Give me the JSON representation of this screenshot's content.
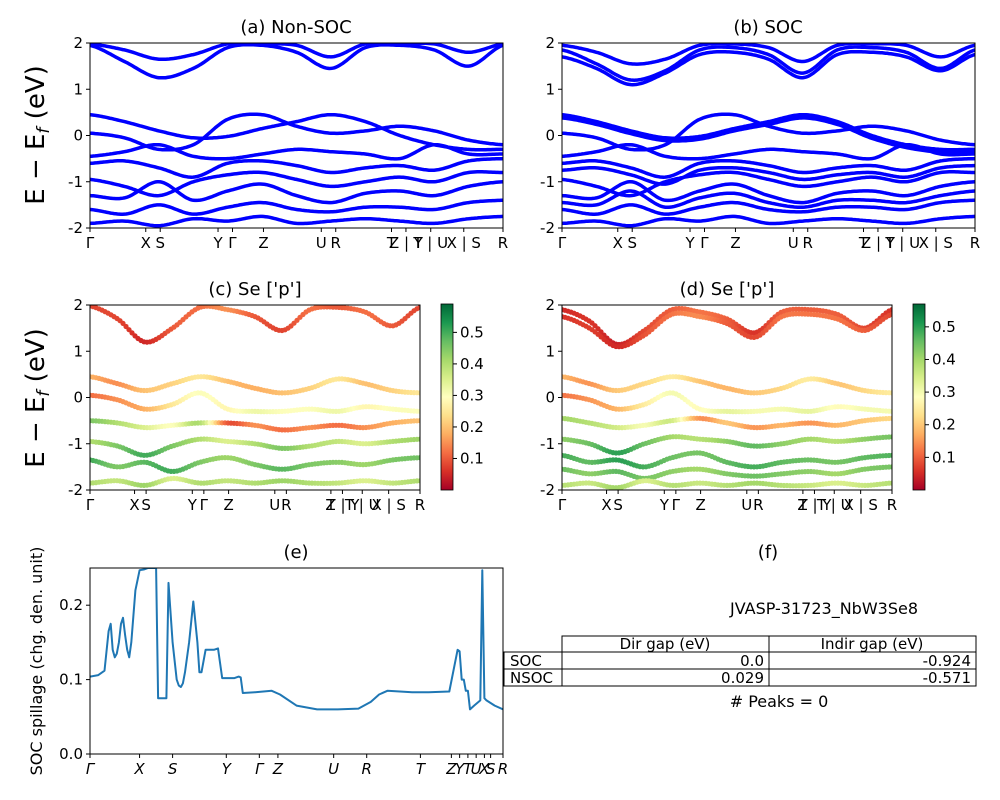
{
  "chart_data": [
    {
      "panel": "a",
      "type": "line",
      "title": "(a) Non-SOC",
      "ylabel": "E - E_f (eV)",
      "ylim": [
        -2,
        2
      ],
      "yticks": [
        "-2",
        "-1",
        "0",
        "1",
        "2"
      ],
      "xticks": [
        "Γ",
        "X",
        "S",
        "Y",
        "Γ",
        "Z",
        "U",
        "R",
        "T",
        "Z | Y",
        "T | U",
        "X | S",
        "R"
      ],
      "color": "#0000ff",
      "bands": [
        [
          0.45,
          0.3,
          0.1,
          -0.05,
          -0.02,
          0.15,
          0.3,
          0.45,
          0.3,
          0.0,
          -0.2,
          -0.3,
          -0.3
        ],
        [
          0.05,
          -0.05,
          -0.3,
          -0.2,
          0.35,
          0.45,
          0.2,
          0.05,
          0.1,
          0.2,
          0.1,
          -0.1,
          -0.2
        ],
        [
          -0.45,
          -0.35,
          -0.2,
          -0.45,
          -0.5,
          -0.4,
          -0.3,
          -0.35,
          -0.4,
          -0.5,
          -0.2,
          -0.4,
          -0.4
        ],
        [
          -0.6,
          -0.55,
          -0.7,
          -0.9,
          -0.6,
          -0.55,
          -0.65,
          -0.8,
          -0.7,
          -0.65,
          -0.75,
          -0.55,
          -0.5
        ],
        [
          -0.95,
          -1.1,
          -1.3,
          -1.0,
          -0.85,
          -0.8,
          -0.95,
          -1.1,
          -1.0,
          -0.9,
          -1.0,
          -0.8,
          -0.8
        ],
        [
          -1.3,
          -1.35,
          -1.0,
          -1.4,
          -1.2,
          -1.05,
          -1.3,
          -1.45,
          -1.25,
          -1.2,
          -1.3,
          -1.1,
          -1.0
        ],
        [
          -1.6,
          -1.7,
          -1.5,
          -1.7,
          -1.55,
          -1.45,
          -1.6,
          -1.65,
          -1.55,
          -1.55,
          -1.6,
          -1.45,
          -1.4
        ],
        [
          -1.9,
          -1.85,
          -1.95,
          -1.8,
          -1.85,
          -1.75,
          -1.9,
          -1.85,
          -1.8,
          -1.85,
          -1.9,
          -1.8,
          -1.75
        ],
        [
          1.95,
          1.6,
          1.25,
          1.45,
          1.9,
          1.95,
          1.8,
          1.45,
          1.9,
          1.95,
          1.85,
          1.5,
          1.95
        ],
        [
          1.98,
          1.85,
          1.65,
          1.75,
          1.98,
          1.98,
          1.95,
          1.7,
          1.98,
          1.98,
          1.98,
          1.8,
          1.98
        ]
      ]
    },
    {
      "panel": "b",
      "type": "line",
      "title": "(b) SOC",
      "ylim": [
        -2,
        2
      ],
      "yticks": [
        "-2",
        "-1",
        "0",
        "1",
        "2"
      ],
      "xticks": [
        "Γ",
        "X",
        "S",
        "Y",
        "Γ",
        "Z",
        "U",
        "R",
        "T",
        "Z | Y",
        "T | U",
        "X | S",
        "R"
      ],
      "color": "#0000ff",
      "bands": [
        [
          0.45,
          0.3,
          0.1,
          -0.05,
          -0.02,
          0.15,
          0.3,
          0.45,
          0.3,
          0.0,
          -0.2,
          -0.3,
          -0.3
        ],
        [
          0.38,
          0.24,
          0.04,
          -0.11,
          -0.08,
          0.1,
          0.24,
          0.38,
          0.24,
          -0.06,
          -0.26,
          -0.36,
          -0.36
        ],
        [
          0.05,
          -0.05,
          -0.3,
          -0.2,
          0.35,
          0.45,
          0.2,
          0.05,
          0.1,
          0.2,
          0.1,
          -0.1,
          -0.2
        ],
        [
          -0.45,
          -0.35,
          -0.2,
          -0.45,
          -0.5,
          -0.4,
          -0.3,
          -0.35,
          -0.4,
          -0.5,
          -0.2,
          -0.4,
          -0.4
        ],
        [
          -0.6,
          -0.55,
          -0.7,
          -0.9,
          -0.6,
          -0.55,
          -0.65,
          -0.8,
          -0.7,
          -0.65,
          -0.75,
          -0.55,
          -0.5
        ],
        [
          -0.75,
          -0.7,
          -0.85,
          -1.05,
          -0.75,
          -0.7,
          -0.8,
          -0.95,
          -0.85,
          -0.8,
          -0.9,
          -0.7,
          -0.65
        ],
        [
          -0.95,
          -1.1,
          -1.3,
          -1.0,
          -0.85,
          -0.8,
          -0.95,
          -1.1,
          -1.0,
          -0.9,
          -1.0,
          -0.8,
          -0.8
        ],
        [
          -1.3,
          -1.35,
          -1.0,
          -1.4,
          -1.2,
          -1.05,
          -1.3,
          -1.45,
          -1.25,
          -1.2,
          -1.3,
          -1.1,
          -1.0
        ],
        [
          -1.45,
          -1.5,
          -1.2,
          -1.55,
          -1.35,
          -1.25,
          -1.45,
          -1.55,
          -1.4,
          -1.4,
          -1.45,
          -1.3,
          -1.2
        ],
        [
          -1.6,
          -1.7,
          -1.5,
          -1.7,
          -1.55,
          -1.45,
          -1.6,
          -1.65,
          -1.55,
          -1.55,
          -1.6,
          -1.45,
          -1.4
        ],
        [
          -1.9,
          -1.85,
          -1.95,
          -1.8,
          -1.85,
          -1.75,
          -1.9,
          -1.85,
          -1.8,
          -1.85,
          -1.9,
          -1.8,
          -1.75
        ],
        [
          1.85,
          1.55,
          1.2,
          1.4,
          1.85,
          1.9,
          1.75,
          1.35,
          1.85,
          1.9,
          1.8,
          1.45,
          1.85
        ],
        [
          1.7,
          1.45,
          1.1,
          1.35,
          1.75,
          1.8,
          1.65,
          1.25,
          1.75,
          1.8,
          1.7,
          1.4,
          1.75
        ],
        [
          1.95,
          1.8,
          1.55,
          1.65,
          1.95,
          1.98,
          1.9,
          1.6,
          1.95,
          1.98,
          1.95,
          1.7,
          1.95
        ]
      ]
    },
    {
      "panel": "c",
      "type": "scatter",
      "title": "(c)  Se ['p']",
      "ylabel": "E - E_f (eV)",
      "ylim": [
        -2,
        2
      ],
      "yticks": [
        "-2",
        "-1",
        "0",
        "1",
        "2"
      ],
      "xticks": [
        "Γ",
        "X",
        "S",
        "Y",
        "Γ",
        "Z",
        "U",
        "R",
        "T",
        "Z | Y",
        "T | U",
        "X | S",
        "R"
      ],
      "colorbar": {
        "min": 0.0,
        "max": 0.59,
        "ticks": [
          "0.1",
          "0.2",
          "0.3",
          "0.4",
          "0.5"
        ],
        "colormap": "RdYlGn"
      },
      "bands": [
        {
          "e": [
            1.98,
            1.7,
            1.2,
            1.5,
            1.95,
            1.9,
            1.75,
            1.45,
            1.9,
            1.95,
            1.85,
            1.55,
            1.95
          ],
          "w": [
            0.08,
            0.08,
            0.05,
            0.1,
            0.12,
            0.15,
            0.1,
            0.08,
            0.12,
            0.1,
            0.12,
            0.1,
            0.08
          ]
        },
        {
          "e": [
            0.45,
            0.3,
            0.15,
            0.3,
            0.45,
            0.35,
            0.2,
            0.1,
            0.2,
            0.4,
            0.3,
            0.15,
            0.1
          ],
          "w": [
            0.18,
            0.15,
            0.2,
            0.22,
            0.25,
            0.2,
            0.18,
            0.2,
            0.22,
            0.25,
            0.2,
            0.22,
            0.25
          ]
        },
        {
          "e": [
            0.05,
            -0.05,
            -0.25,
            -0.15,
            0.1,
            -0.25,
            -0.3,
            -0.3,
            -0.25,
            -0.3,
            -0.2,
            -0.25,
            -0.3
          ],
          "w": [
            0.12,
            0.15,
            0.18,
            0.25,
            0.3,
            0.28,
            0.32,
            0.3,
            0.3,
            0.32,
            0.28,
            0.3,
            0.3
          ]
        },
        {
          "e": [
            -0.5,
            -0.55,
            -0.65,
            -0.6,
            -0.55,
            -0.55,
            -0.6,
            -0.7,
            -0.65,
            -0.6,
            -0.65,
            -0.55,
            -0.5
          ],
          "w": [
            0.45,
            0.4,
            0.35,
            0.3,
            0.4,
            0.1,
            0.15,
            0.12,
            0.15,
            0.12,
            0.15,
            0.18,
            0.2
          ]
        },
        {
          "e": [
            -0.95,
            -1.05,
            -1.25,
            -1.05,
            -0.9,
            -0.95,
            -1.0,
            -1.1,
            -1.05,
            -0.95,
            -1.0,
            -0.95,
            -0.9
          ],
          "w": [
            0.4,
            0.45,
            0.5,
            0.45,
            0.4,
            0.35,
            0.4,
            0.45,
            0.4,
            0.38,
            0.35,
            0.4,
            0.42
          ]
        },
        {
          "e": [
            -1.35,
            -1.5,
            -1.4,
            -1.6,
            -1.4,
            -1.3,
            -1.45,
            -1.55,
            -1.45,
            -1.4,
            -1.45,
            -1.35,
            -1.3
          ],
          "w": [
            0.5,
            0.45,
            0.48,
            0.5,
            0.45,
            0.42,
            0.45,
            0.48,
            0.45,
            0.44,
            0.42,
            0.45,
            0.46
          ]
        },
        {
          "e": [
            -1.85,
            -1.8,
            -1.9,
            -1.75,
            -1.85,
            -1.8,
            -1.85,
            -1.8,
            -1.85,
            -1.85,
            -1.8,
            -1.85,
            -1.8
          ],
          "w": [
            0.4,
            0.38,
            0.42,
            0.35,
            0.4,
            0.38,
            0.4,
            0.42,
            0.4,
            0.38,
            0.35,
            0.38,
            0.4
          ]
        }
      ]
    },
    {
      "panel": "d",
      "type": "scatter",
      "title": "(d) Se ['p']",
      "ylim": [
        -2,
        2
      ],
      "yticks": [
        "-2",
        "-1",
        "0",
        "1",
        "2"
      ],
      "xticks": [
        "Γ",
        "X",
        "S",
        "Y",
        "Γ",
        "Z",
        "U",
        "R",
        "T",
        "Z | Y",
        "T | U",
        "X | S",
        "R"
      ],
      "colorbar": {
        "min": 0.0,
        "max": 0.57,
        "ticks": [
          "0.1",
          "0.2",
          "0.3",
          "0.4",
          "0.5"
        ],
        "colormap": "RdYlGn"
      },
      "bands": [
        {
          "e": [
            1.9,
            1.65,
            1.15,
            1.45,
            1.9,
            1.85,
            1.7,
            1.4,
            1.85,
            1.9,
            1.8,
            1.5,
            1.9
          ],
          "w": [
            0.05,
            0.06,
            0.04,
            0.08,
            0.1,
            0.12,
            0.1,
            0.06,
            0.1,
            0.1,
            0.1,
            0.08,
            0.06
          ]
        },
        {
          "e": [
            1.75,
            1.5,
            1.1,
            1.35,
            1.8,
            1.75,
            1.6,
            1.3,
            1.75,
            1.8,
            1.7,
            1.45,
            1.8
          ],
          "w": [
            0.06,
            0.07,
            0.05,
            0.09,
            0.12,
            0.14,
            0.1,
            0.08,
            0.12,
            0.12,
            0.12,
            0.1,
            0.08
          ]
        },
        {
          "e": [
            0.45,
            0.3,
            0.15,
            0.3,
            0.45,
            0.35,
            0.2,
            0.1,
            0.2,
            0.4,
            0.3,
            0.15,
            0.1
          ],
          "w": [
            0.18,
            0.15,
            0.2,
            0.22,
            0.25,
            0.2,
            0.18,
            0.2,
            0.22,
            0.25,
            0.2,
            0.22,
            0.25
          ]
        },
        {
          "e": [
            0.05,
            -0.05,
            -0.25,
            -0.15,
            0.1,
            -0.25,
            -0.3,
            -0.3,
            -0.25,
            -0.3,
            -0.2,
            -0.25,
            -0.3
          ],
          "w": [
            0.12,
            0.15,
            0.18,
            0.25,
            0.3,
            0.28,
            0.32,
            0.3,
            0.3,
            0.32,
            0.28,
            0.3,
            0.3
          ]
        },
        {
          "e": [
            -0.45,
            -0.55,
            -0.65,
            -0.6,
            -0.5,
            -0.45,
            -0.55,
            -0.65,
            -0.6,
            -0.55,
            -0.6,
            -0.5,
            -0.45
          ],
          "w": [
            0.4,
            0.38,
            0.35,
            0.3,
            0.35,
            0.15,
            0.2,
            0.15,
            0.18,
            0.15,
            0.18,
            0.2,
            0.22
          ]
        },
        {
          "e": [
            -0.9,
            -1.0,
            -1.2,
            -1.0,
            -0.85,
            -0.9,
            -0.95,
            -1.05,
            -1.0,
            -0.9,
            -0.95,
            -0.9,
            -0.85
          ],
          "w": [
            0.42,
            0.45,
            0.5,
            0.45,
            0.4,
            0.38,
            0.42,
            0.46,
            0.42,
            0.4,
            0.38,
            0.42,
            0.44
          ]
        },
        {
          "e": [
            -1.25,
            -1.4,
            -1.35,
            -1.5,
            -1.3,
            -1.2,
            -1.4,
            -1.5,
            -1.4,
            -1.35,
            -1.4,
            -1.3,
            -1.25
          ],
          "w": [
            0.48,
            0.46,
            0.5,
            0.48,
            0.45,
            0.44,
            0.46,
            0.48,
            0.46,
            0.45,
            0.44,
            0.46,
            0.47
          ]
        },
        {
          "e": [
            -1.55,
            -1.65,
            -1.6,
            -1.75,
            -1.6,
            -1.55,
            -1.65,
            -1.7,
            -1.65,
            -1.6,
            -1.65,
            -1.55,
            -1.5
          ],
          "w": [
            0.45,
            0.42,
            0.46,
            0.44,
            0.42,
            0.4,
            0.43,
            0.45,
            0.43,
            0.42,
            0.4,
            0.43,
            0.44
          ]
        },
        {
          "e": [
            -1.9,
            -1.85,
            -1.95,
            -1.8,
            -1.9,
            -1.85,
            -1.9,
            -1.85,
            -1.9,
            -1.9,
            -1.85,
            -1.9,
            -1.85
          ],
          "w": [
            0.38,
            0.36,
            0.4,
            0.34,
            0.38,
            0.36,
            0.38,
            0.4,
            0.38,
            0.36,
            0.34,
            0.36,
            0.38
          ]
        }
      ]
    },
    {
      "panel": "e",
      "type": "line",
      "title": "(e)",
      "ylabel": "SOC spillage (chg. den. unit)",
      "ylim": [
        0.0,
        0.25
      ],
      "yticks": [
        "0.0",
        "0.1",
        "0.2"
      ],
      "xticks": [
        "Γ",
        "X",
        "S",
        "Y",
        "Γ",
        "Z",
        "U",
        "R",
        "T",
        "Z",
        "Y",
        "T",
        "U",
        "X",
        "S",
        "R"
      ],
      "color": "#1f77b4",
      "x": [
        0,
        0.02,
        0.035,
        0.045,
        0.05,
        0.055,
        0.06,
        0.065,
        0.07,
        0.075,
        0.08,
        0.085,
        0.09,
        0.095,
        0.1,
        0.11,
        0.12,
        0.13,
        0.14,
        0.15,
        0.16,
        0.165,
        0.17,
        0.175,
        0.18,
        0.185,
        0.19,
        0.2,
        0.21,
        0.215,
        0.22,
        0.225,
        0.23,
        0.24,
        0.25,
        0.26,
        0.265,
        0.27,
        0.28,
        0.285,
        0.29,
        0.3,
        0.31,
        0.32,
        0.35,
        0.36,
        0.365,
        0.37,
        0.4,
        0.44,
        0.46,
        0.5,
        0.55,
        0.6,
        0.65,
        0.68,
        0.7,
        0.72,
        0.75,
        0.78,
        0.82,
        0.87,
        0.89,
        0.895,
        0.9,
        0.905,
        0.91,
        0.915,
        0.92,
        0.93,
        0.945,
        0.95,
        0.955,
        0.96,
        0.98,
        1.0
      ],
      "values": [
        0.104,
        0.106,
        0.112,
        0.165,
        0.175,
        0.14,
        0.13,
        0.135,
        0.15,
        0.175,
        0.183,
        0.16,
        0.14,
        0.13,
        0.15,
        0.22,
        0.247,
        0.248,
        0.25,
        0.25,
        0.25,
        0.075,
        0.075,
        0.075,
        0.075,
        0.075,
        0.23,
        0.15,
        0.1,
        0.092,
        0.09,
        0.095,
        0.11,
        0.15,
        0.205,
        0.15,
        0.11,
        0.11,
        0.14,
        0.14,
        0.14,
        0.14,
        0.142,
        0.102,
        0.102,
        0.104,
        0.103,
        0.082,
        0.083,
        0.085,
        0.08,
        0.065,
        0.06,
        0.06,
        0.061,
        0.07,
        0.08,
        0.085,
        0.084,
        0.083,
        0.083,
        0.084,
        0.14,
        0.138,
        0.1,
        0.1,
        0.085,
        0.085,
        0.06,
        0.065,
        0.072,
        0.247,
        0.075,
        0.072,
        0.065,
        0.06
      ]
    }
  ],
  "panel_f": {
    "title": "(f)",
    "material": "JVASP-31723_NbW3Se8",
    "table": {
      "columns": [
        "",
        "Dir gap (eV)",
        "Indir gap (eV)"
      ],
      "rows": [
        {
          "label": "SOC",
          "dir": "0.0",
          "indir": "-0.924"
        },
        {
          "label": "NSOC",
          "dir": "0.029",
          "indir": "-0.571"
        }
      ]
    },
    "peaks_label": "# Peaks = 0"
  }
}
